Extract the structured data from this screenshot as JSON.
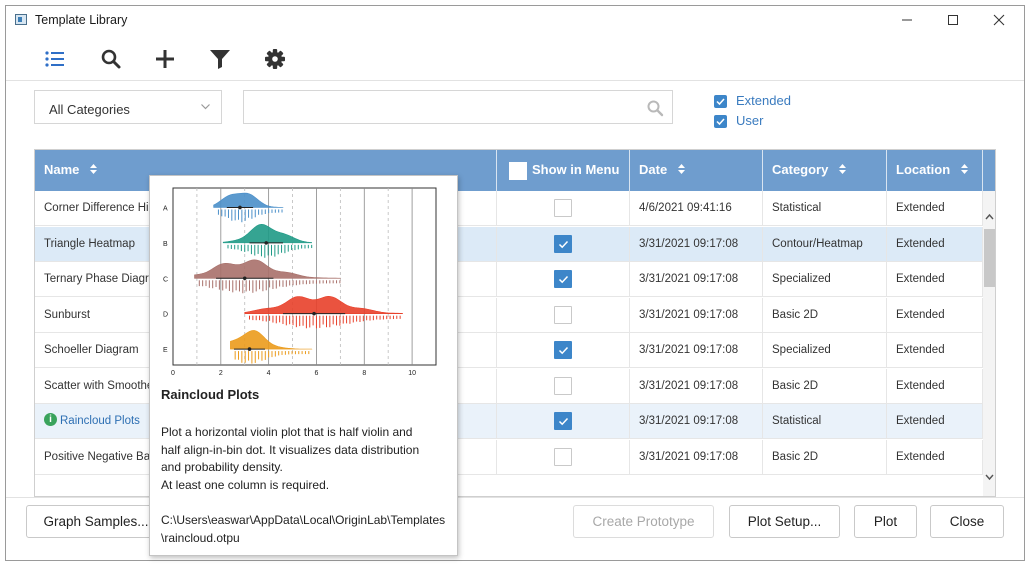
{
  "window": {
    "title": "Template Library",
    "title_icon": "origin-app-icon"
  },
  "window_controls": [
    "minimize-icon",
    "maximize-icon",
    "close-icon"
  ],
  "toolbar": {
    "icons": [
      "list-icon",
      "search-icon",
      "plus-icon",
      "filter-icon",
      "gear-icon"
    ],
    "accent_color": "#2f6fc7"
  },
  "filters": {
    "category_value": "All Categories",
    "search_value": "",
    "search_placeholder": "",
    "extended_label": "Extended",
    "extended_checked": true,
    "user_label": "User",
    "user_checked": true
  },
  "table": {
    "header_color": "#6f9dce",
    "columns": [
      "Name",
      "Show in Menu",
      "Date",
      "Category",
      "Location"
    ],
    "rows": [
      {
        "name": "Corner Difference Histogram",
        "show": false,
        "date": "4/6/2021 09:41:16",
        "category": "Statistical",
        "location": "Extended",
        "state": ""
      },
      {
        "name": "Triangle Heatmap",
        "show": true,
        "date": "3/31/2021 09:17:08",
        "category": "Contour/Heatmap",
        "location": "Extended",
        "state": "sel"
      },
      {
        "name": "Ternary Phase Diagram",
        "show": true,
        "date": "3/31/2021 09:17:08",
        "category": "Specialized",
        "location": "Extended",
        "state": ""
      },
      {
        "name": "Sunburst",
        "show": false,
        "date": "3/31/2021 09:17:08",
        "category": "Basic 2D",
        "location": "Extended",
        "state": ""
      },
      {
        "name": "Schoeller Diagram",
        "show": true,
        "date": "3/31/2021 09:17:08",
        "category": "Specialized",
        "location": "Extended",
        "state": ""
      },
      {
        "name": "Scatter with Smoothed Line",
        "show": false,
        "date": "3/31/2021 09:17:08",
        "category": "Basic 2D",
        "location": "Extended",
        "state": ""
      },
      {
        "name": "Raincloud Plots",
        "show": true,
        "date": "3/31/2021 09:17:08",
        "category": "Statistical",
        "location": "Extended",
        "state": "alt"
      },
      {
        "name": "Positive Negative Bar",
        "show": false,
        "date": "3/31/2021 09:17:08",
        "category": "Basic 2D",
        "location": "Extended",
        "state": ""
      }
    ]
  },
  "tooltip": {
    "title": "Raincloud Plots",
    "description": "Plot a horizontal violin plot that is half violin and\nhalf align-in-bin dot. It visualizes data distribution\nand probability density.\nAt least one column is required.",
    "path": "C:\\Users\\easwar\\AppData\\Local\\OriginLab\\Templates\\raincloud.otpu",
    "preview": {
      "categories": [
        "A",
        "B",
        "C",
        "D",
        "E"
      ],
      "x_ticks": [
        "0",
        "2",
        "4",
        "6",
        "8",
        "10"
      ],
      "colors": [
        "#4a8fc9",
        "#1f9a86",
        "#a8706a",
        "#e8402a",
        "#eb9b1c"
      ]
    }
  },
  "buttons": {
    "graph_samples": "Graph Samples...",
    "create_prototype": "Create Prototype",
    "plot_setup": "Plot Setup...",
    "plot": "Plot",
    "close": "Close"
  }
}
